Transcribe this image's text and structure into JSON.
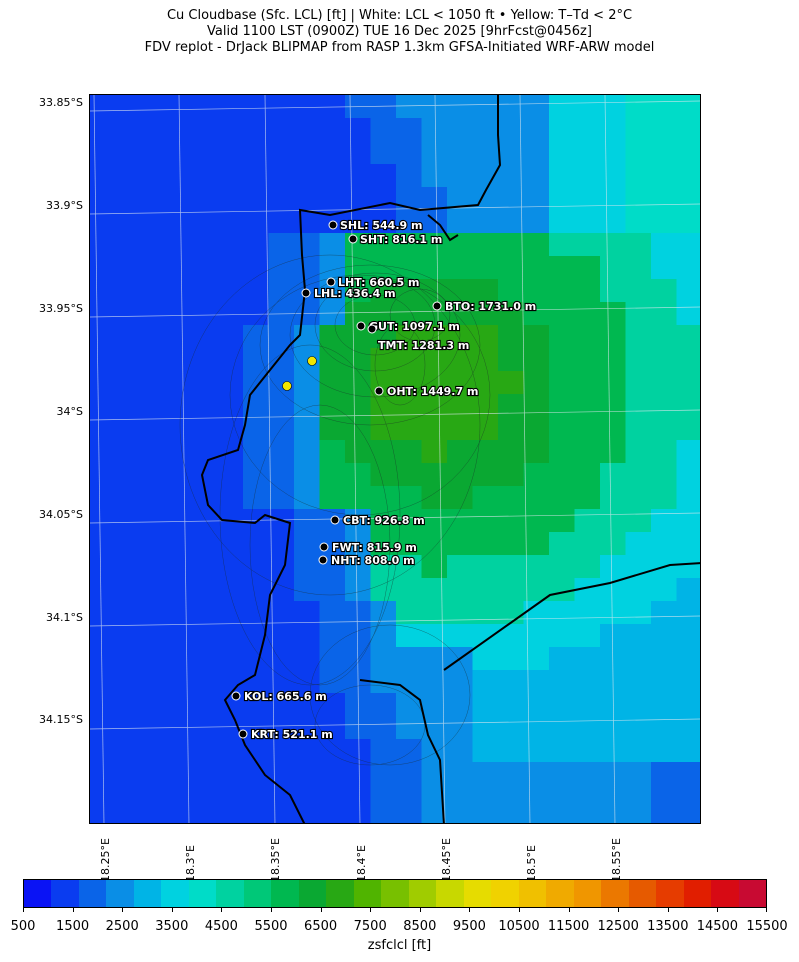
{
  "title": {
    "line1": "Cu Cloudbase (Sfc. LCL) [ft]  |  White: LCL < 1050 ft • Yellow: T–Td < 2°C",
    "line2": "Valid 1100 LST (0900Z) TUE 16 Dec 2025 [9hrFcst@0456z]",
    "line3": "FDV replot - DrJack BLIPMAP from RASP 1.3km GFSA-Initiated WRF-ARW model"
  },
  "latitude_labels": [
    "33.85°S",
    "33.9°S",
    "33.95°S",
    "34°S",
    "34.05°S",
    "34.1°S",
    "34.15°S"
  ],
  "longitude_labels": [
    "18.25°E",
    "18.3°E",
    "18.35°E",
    "18.4°E",
    "18.45°E",
    "18.5°E",
    "18.55°E"
  ],
  "sites": [
    {
      "label": "SHL: 544.9 m"
    },
    {
      "label": "SHT: 816.1 m"
    },
    {
      "label": "LHT: 660.5 m"
    },
    {
      "label": "LHL: 436.4 m"
    },
    {
      "label": "BTO: 1731.0 m"
    },
    {
      "label": "GUT: 1097.1 m"
    },
    {
      "label": "TMT: 1281.3 m"
    },
    {
      "label": "OHT: 1449.7 m"
    },
    {
      "label": "CBT: 926.8 m"
    },
    {
      "label": "FWT: 815.9 m"
    },
    {
      "label": "NHT: 808.0 m"
    },
    {
      "label": "KOL: 665.6 m"
    },
    {
      "label": "KRT: 521.1 m"
    }
  ],
  "yellow_markers_note_colour": "#f2e600",
  "colorbar": {
    "title": "zsfclcl [ft]",
    "tick_labels": [
      "500",
      "1500",
      "2500",
      "3500",
      "4500",
      "5500",
      "6500",
      "7500",
      "8500",
      "9500",
      "10500",
      "11500",
      "12500",
      "13500",
      "14500",
      "15500"
    ],
    "colors": [
      "#0a13f5",
      "#0a3cf0",
      "#0a64e8",
      "#0a8ee6",
      "#00b4e6",
      "#00d2e0",
      "#00dcc8",
      "#00d2a0",
      "#00c878",
      "#00b850",
      "#0aa832",
      "#28a814",
      "#50b400",
      "#78c000",
      "#a0cc00",
      "#c8d800",
      "#e6dc00",
      "#f0d200",
      "#f0c000",
      "#f0aa00",
      "#f09600",
      "#eb7800",
      "#e65a00",
      "#e63c00",
      "#e11e00",
      "#d70a14",
      "#c80a32"
    ]
  }
}
